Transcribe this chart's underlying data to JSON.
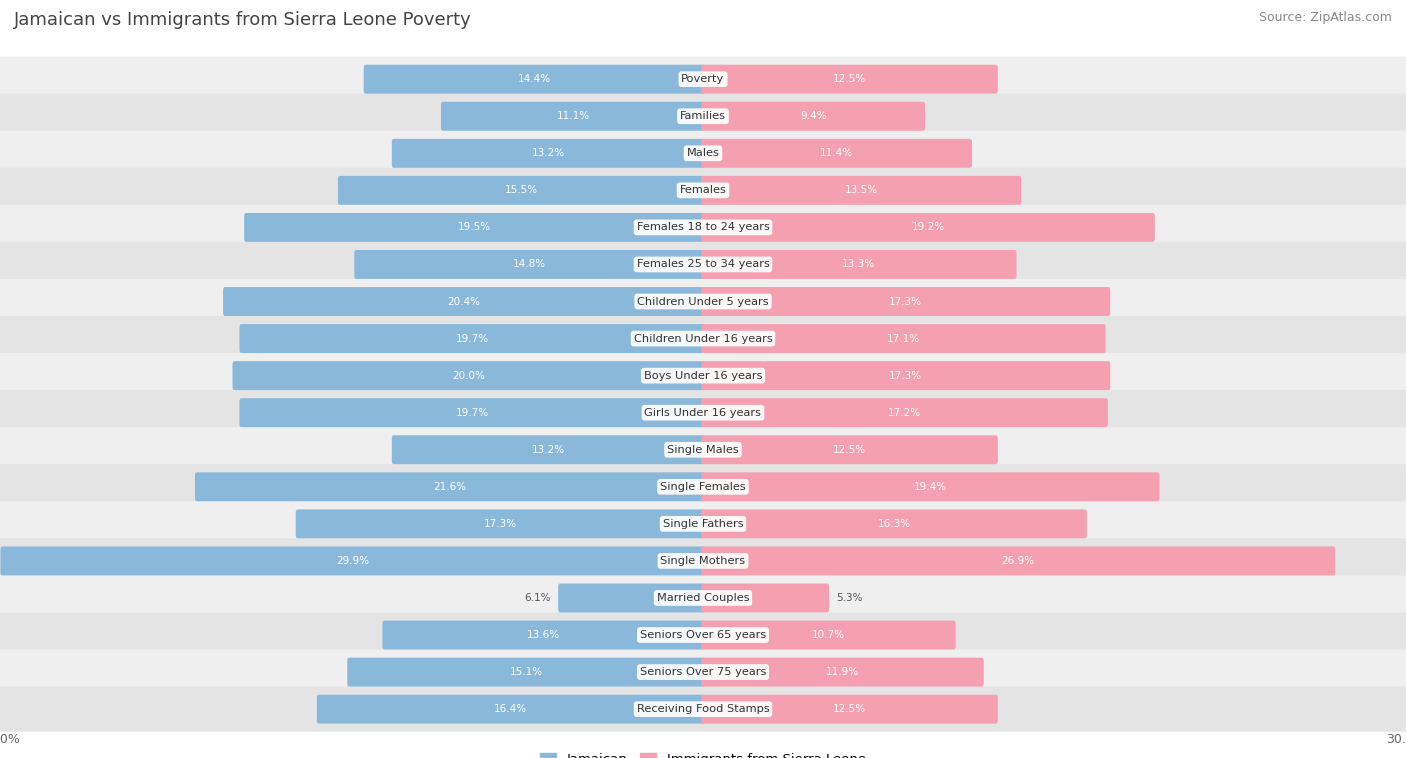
{
  "title": "Jamaican vs Immigrants from Sierra Leone Poverty",
  "source": "Source: ZipAtlas.com",
  "categories": [
    "Poverty",
    "Families",
    "Males",
    "Females",
    "Females 18 to 24 years",
    "Females 25 to 34 years",
    "Children Under 5 years",
    "Children Under 16 years",
    "Boys Under 16 years",
    "Girls Under 16 years",
    "Single Males",
    "Single Females",
    "Single Fathers",
    "Single Mothers",
    "Married Couples",
    "Seniors Over 65 years",
    "Seniors Over 75 years",
    "Receiving Food Stamps"
  ],
  "jamaican": [
    14.4,
    11.1,
    13.2,
    15.5,
    19.5,
    14.8,
    20.4,
    19.7,
    20.0,
    19.7,
    13.2,
    21.6,
    17.3,
    29.9,
    6.1,
    13.6,
    15.1,
    16.4
  ],
  "sierra_leone": [
    12.5,
    9.4,
    11.4,
    13.5,
    19.2,
    13.3,
    17.3,
    17.1,
    17.3,
    17.2,
    12.5,
    19.4,
    16.3,
    26.9,
    5.3,
    10.7,
    11.9,
    12.5
  ],
  "blue_color": "#89b8db",
  "pink_color": "#f4a0b0",
  "row_bg_even": "#efefef",
  "row_bg_odd": "#e4e4e4",
  "max_val": 30.0,
  "legend_jamaican": "Jamaican",
  "legend_sierra": "Immigrants from Sierra Leone",
  "title_color": "#444444",
  "source_color": "#888888",
  "label_color": "#555555",
  "value_color_inside": "#ffffff",
  "value_color_outside": "#666666"
}
